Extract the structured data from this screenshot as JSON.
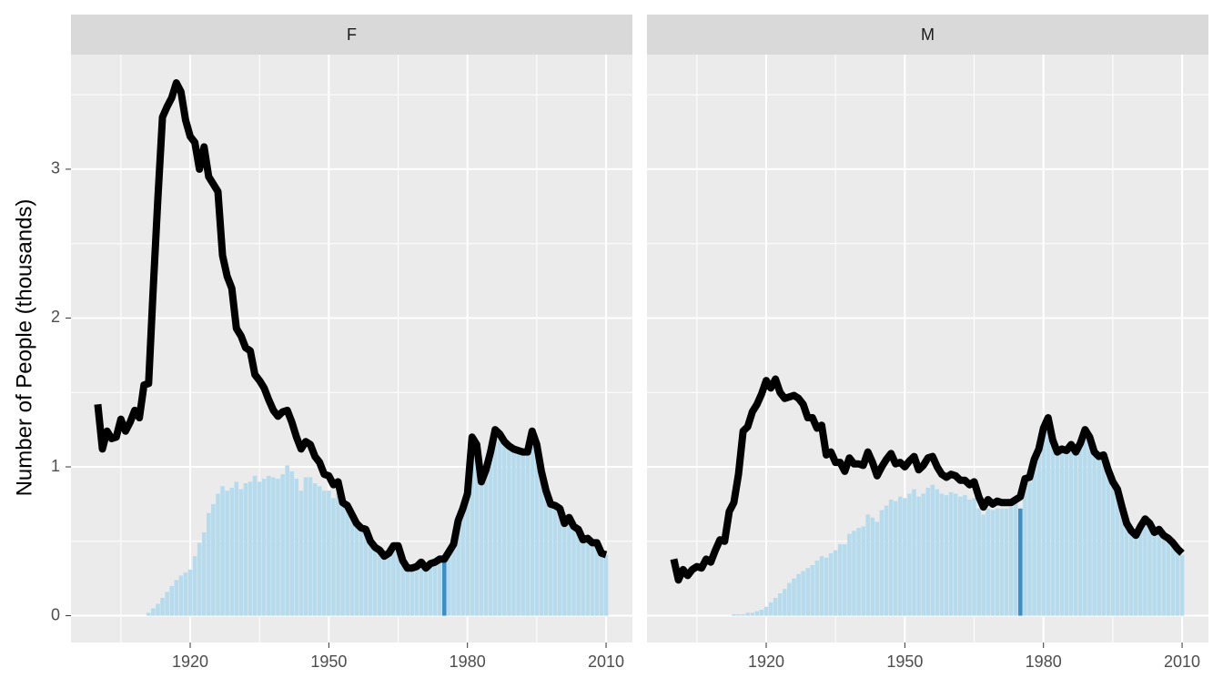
{
  "chart_data": {
    "type": "facet-bar-line",
    "ylabel": "Number of People (thousands)",
    "xlim": [
      1894.2,
      2015.7
    ],
    "ylim": [
      -0.18,
      3.77
    ],
    "xticks": [
      1920,
      1950,
      1980,
      2010
    ],
    "minor_xticks": [
      1905,
      1935,
      1965,
      1995
    ],
    "yticks": [
      0,
      1,
      2,
      3
    ],
    "minor_yticks": [
      0.5,
      1.5,
      2.5,
      3.5
    ],
    "grid": true,
    "panels": [
      {
        "title": "F",
        "bars": {
          "color": "#b5dbec",
          "highlight": {
            "x": 1975,
            "color": "#3a8fc4"
          },
          "x": [
            1911,
            1912,
            1913,
            1914,
            1915,
            1916,
            1917,
            1918,
            1919,
            1920,
            1921,
            1922,
            1923,
            1924,
            1925,
            1926,
            1927,
            1928,
            1929,
            1930,
            1931,
            1932,
            1933,
            1934,
            1935,
            1936,
            1937,
            1938,
            1939,
            1940,
            1941,
            1942,
            1943,
            1944,
            1945,
            1946,
            1947,
            1948,
            1949,
            1950,
            1951,
            1952,
            1953,
            1954,
            1955,
            1956,
            1957,
            1958,
            1959,
            1960,
            1961,
            1962,
            1963,
            1964,
            1965,
            1966,
            1967,
            1968,
            1969,
            1970,
            1971,
            1972,
            1973,
            1974,
            1975,
            1976,
            1977,
            1978,
            1979,
            1980,
            1981,
            1982,
            1983,
            1984,
            1985,
            1986,
            1987,
            1988,
            1989,
            1990,
            1991,
            1992,
            1993,
            1994,
            1995,
            1996,
            1997,
            1998,
            1999,
            2000,
            2001,
            2002,
            2003,
            2004,
            2005,
            2006,
            2007,
            2008,
            2009,
            2010
          ],
          "values": [
            0.02,
            0.05,
            0.08,
            0.12,
            0.16,
            0.2,
            0.24,
            0.27,
            0.29,
            0.31,
            0.4,
            0.49,
            0.56,
            0.69,
            0.75,
            0.82,
            0.87,
            0.84,
            0.86,
            0.9,
            0.85,
            0.89,
            0.9,
            0.94,
            0.9,
            0.92,
            0.94,
            0.93,
            0.92,
            0.95,
            1.01,
            0.97,
            0.92,
            0.84,
            0.93,
            0.93,
            0.89,
            0.87,
            0.84,
            0.84,
            0.79,
            0.82,
            0.75,
            0.74,
            0.69,
            0.63,
            0.6,
            0.57,
            0.5,
            0.47,
            0.45,
            0.41,
            0.42,
            0.46,
            0.46,
            0.38,
            0.33,
            0.32,
            0.33,
            0.36,
            0.32,
            0.35,
            0.36,
            0.38,
            0.38,
            0.43,
            0.48,
            0.63,
            0.71,
            0.8,
            1.15,
            1.12,
            0.9,
            0.98,
            1.1,
            1.2,
            1.2,
            1.16,
            1.14,
            1.12,
            1.11,
            1.1,
            1.1,
            1.2,
            1.13,
            0.97,
            0.84,
            0.75,
            0.74,
            0.72,
            0.62,
            0.66,
            0.6,
            0.58,
            0.51,
            0.52,
            0.49,
            0.49,
            0.42,
            0.41
          ]
        },
        "line": {
          "color": "#000000",
          "x": [
            1900,
            1901,
            1902,
            1903,
            1904,
            1905,
            1906,
            1907,
            1908,
            1909,
            1910,
            1911,
            1912,
            1913,
            1914,
            1915,
            1916,
            1917,
            1918,
            1919,
            1920,
            1921,
            1922,
            1923,
            1924,
            1925,
            1926,
            1927,
            1928,
            1929,
            1930,
            1931,
            1932,
            1933,
            1934,
            1935,
            1936,
            1937,
            1938,
            1939,
            1940,
            1941,
            1942,
            1943,
            1944,
            1945,
            1946,
            1947,
            1948,
            1949,
            1950,
            1951,
            1952,
            1953,
            1954,
            1955,
            1956,
            1957,
            1958,
            1959,
            1960,
            1961,
            1962,
            1963,
            1964,
            1965,
            1966,
            1967,
            1968,
            1969,
            1970,
            1971,
            1972,
            1973,
            1974,
            1975,
            1976,
            1977,
            1978,
            1979,
            1980,
            1981,
            1982,
            1983,
            1984,
            1985,
            1986,
            1987,
            1988,
            1989,
            1990,
            1991,
            1992,
            1993,
            1994,
            1995,
            1996,
            1997,
            1998,
            1999,
            2000,
            2001,
            2002,
            2003,
            2004,
            2005,
            2006,
            2007,
            2008,
            2009,
            2010
          ],
          "values": [
            1.42,
            1.12,
            1.24,
            1.19,
            1.2,
            1.32,
            1.24,
            1.3,
            1.38,
            1.33,
            1.55,
            1.56,
            2.2,
            2.8,
            3.35,
            3.42,
            3.48,
            3.58,
            3.52,
            3.33,
            3.22,
            3.18,
            3.0,
            3.15,
            2.95,
            2.9,
            2.85,
            2.42,
            2.28,
            2.2,
            1.93,
            1.88,
            1.8,
            1.78,
            1.62,
            1.58,
            1.53,
            1.45,
            1.38,
            1.34,
            1.37,
            1.38,
            1.3,
            1.2,
            1.12,
            1.17,
            1.15,
            1.07,
            1.03,
            0.95,
            0.94,
            0.88,
            0.9,
            0.76,
            0.74,
            0.68,
            0.62,
            0.59,
            0.58,
            0.5,
            0.46,
            0.44,
            0.4,
            0.42,
            0.47,
            0.47,
            0.37,
            0.32,
            0.32,
            0.33,
            0.36,
            0.32,
            0.35,
            0.36,
            0.38,
            0.38,
            0.43,
            0.48,
            0.64,
            0.72,
            0.82,
            1.2,
            1.15,
            0.9,
            0.98,
            1.1,
            1.25,
            1.22,
            1.17,
            1.14,
            1.12,
            1.11,
            1.1,
            1.1,
            1.24,
            1.15,
            0.97,
            0.84,
            0.75,
            0.74,
            0.72,
            0.62,
            0.66,
            0.6,
            0.58,
            0.51,
            0.52,
            0.49,
            0.49,
            0.42,
            0.41
          ]
        }
      },
      {
        "title": "M",
        "bars": {
          "color": "#b5dbec",
          "highlight": {
            "x": 1975,
            "color": "#3a8fc4"
          },
          "x": [
            1913,
            1914,
            1915,
            1916,
            1917,
            1918,
            1919,
            1920,
            1921,
            1922,
            1923,
            1924,
            1925,
            1926,
            1927,
            1928,
            1929,
            1930,
            1931,
            1932,
            1933,
            1934,
            1935,
            1936,
            1937,
            1938,
            1939,
            1940,
            1941,
            1942,
            1943,
            1944,
            1945,
            1946,
            1947,
            1948,
            1949,
            1950,
            1951,
            1952,
            1953,
            1954,
            1955,
            1956,
            1957,
            1958,
            1959,
            1960,
            1961,
            1962,
            1963,
            1964,
            1965,
            1966,
            1967,
            1968,
            1969,
            1970,
            1971,
            1972,
            1973,
            1974,
            1975,
            1976,
            1977,
            1978,
            1979,
            1980,
            1981,
            1982,
            1983,
            1984,
            1985,
            1986,
            1987,
            1988,
            1989,
            1990,
            1991,
            1992,
            1993,
            1994,
            1995,
            1996,
            1997,
            1998,
            1999,
            2000,
            2001,
            2002,
            2003,
            2004,
            2005,
            2006,
            2007,
            2008,
            2009,
            2010
          ],
          "values": [
            0.01,
            0.01,
            0.01,
            0.02,
            0.02,
            0.03,
            0.04,
            0.06,
            0.09,
            0.12,
            0.15,
            0.18,
            0.22,
            0.25,
            0.28,
            0.3,
            0.32,
            0.34,
            0.37,
            0.4,
            0.39,
            0.42,
            0.44,
            0.48,
            0.48,
            0.55,
            0.57,
            0.59,
            0.6,
            0.68,
            0.66,
            0.63,
            0.71,
            0.74,
            0.78,
            0.77,
            0.8,
            0.79,
            0.82,
            0.85,
            0.8,
            0.82,
            0.86,
            0.88,
            0.85,
            0.82,
            0.81,
            0.83,
            0.82,
            0.8,
            0.81,
            0.78,
            0.79,
            0.72,
            0.68,
            0.72,
            0.71,
            0.72,
            0.72,
            0.72,
            0.73,
            0.76,
            0.72,
            0.88,
            0.9,
            1.02,
            1.08,
            1.2,
            1.26,
            1.14,
            1.08,
            1.1,
            1.1,
            1.13,
            1.09,
            1.14,
            1.2,
            1.17,
            1.08,
            1.05,
            1.06,
            0.97,
            0.89,
            0.84,
            0.72,
            0.62,
            0.57,
            0.54,
            0.59,
            0.63,
            0.61,
            0.56,
            0.57,
            0.53,
            0.51,
            0.48,
            0.44,
            0.41
          ]
        },
        "line": {
          "color": "#000000",
          "x": [
            1900,
            1901,
            1902,
            1903,
            1904,
            1905,
            1906,
            1907,
            1908,
            1909,
            1910,
            1911,
            1912,
            1913,
            1914,
            1915,
            1916,
            1917,
            1918,
            1919,
            1920,
            1921,
            1922,
            1923,
            1924,
            1925,
            1926,
            1927,
            1928,
            1929,
            1930,
            1931,
            1932,
            1933,
            1934,
            1935,
            1936,
            1937,
            1938,
            1939,
            1940,
            1941,
            1942,
            1943,
            1944,
            1945,
            1946,
            1947,
            1948,
            1949,
            1950,
            1951,
            1952,
            1953,
            1954,
            1955,
            1956,
            1957,
            1958,
            1959,
            1960,
            1961,
            1962,
            1963,
            1964,
            1965,
            1966,
            1967,
            1968,
            1969,
            1970,
            1971,
            1972,
            1973,
            1974,
            1975,
            1976,
            1977,
            1978,
            1979,
            1980,
            1981,
            1982,
            1983,
            1984,
            1985,
            1986,
            1987,
            1988,
            1989,
            1990,
            1991,
            1992,
            1993,
            1994,
            1995,
            1996,
            1997,
            1998,
            1999,
            2000,
            2001,
            2002,
            2003,
            2004,
            2005,
            2006,
            2007,
            2008,
            2009,
            2010
          ],
          "values": [
            0.38,
            0.24,
            0.31,
            0.27,
            0.31,
            0.33,
            0.32,
            0.38,
            0.36,
            0.44,
            0.51,
            0.5,
            0.7,
            0.76,
            0.95,
            1.24,
            1.27,
            1.37,
            1.42,
            1.49,
            1.58,
            1.53,
            1.59,
            1.5,
            1.46,
            1.47,
            1.48,
            1.46,
            1.42,
            1.33,
            1.33,
            1.26,
            1.28,
            1.08,
            1.1,
            1.03,
            1.03,
            0.97,
            1.06,
            1.02,
            1.02,
            1.01,
            1.1,
            1.03,
            0.94,
            1.0,
            1.05,
            1.09,
            1.02,
            1.03,
            1.0,
            1.04,
            1.07,
            0.98,
            1.01,
            1.06,
            1.07,
            1.0,
            0.95,
            0.93,
            0.95,
            0.94,
            0.91,
            0.91,
            0.88,
            0.9,
            0.8,
            0.73,
            0.78,
            0.75,
            0.77,
            0.76,
            0.76,
            0.76,
            0.78,
            0.8,
            0.92,
            0.93,
            1.05,
            1.12,
            1.26,
            1.33,
            1.18,
            1.1,
            1.12,
            1.11,
            1.15,
            1.1,
            1.16,
            1.25,
            1.2,
            1.1,
            1.07,
            1.08,
            0.98,
            0.9,
            0.85,
            0.73,
            0.62,
            0.57,
            0.54,
            0.6,
            0.65,
            0.62,
            0.56,
            0.58,
            0.54,
            0.52,
            0.49,
            0.45,
            0.42
          ]
        }
      }
    ]
  }
}
